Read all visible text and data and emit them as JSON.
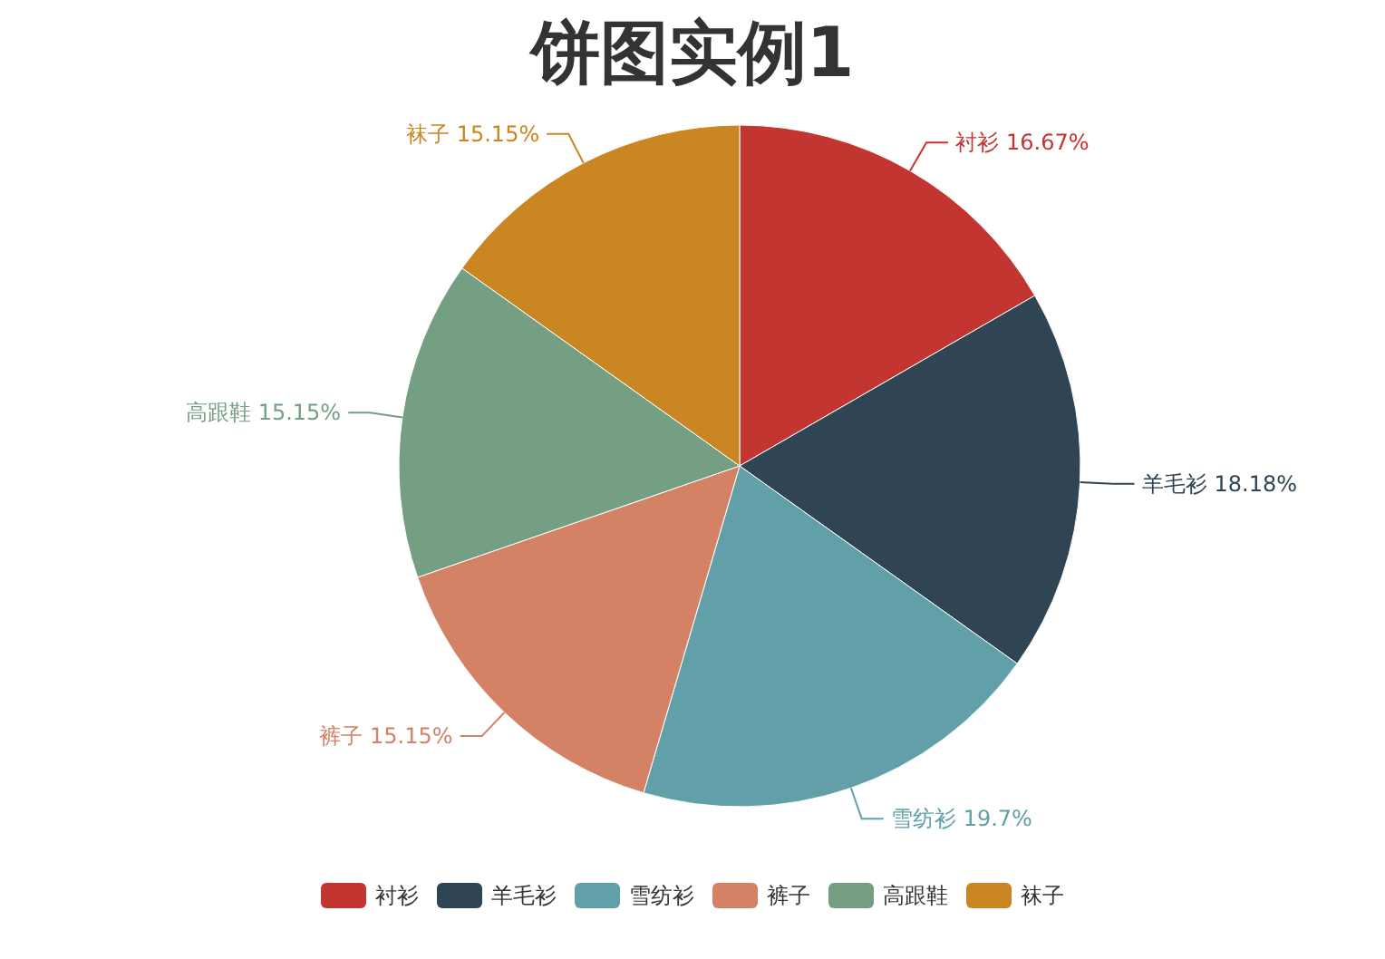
{
  "chart_data": {
    "type": "pie",
    "title": "饼图实例1",
    "categories": [
      "衬衫",
      "羊毛衫",
      "雪纺衫",
      "裤子",
      "高跟鞋",
      "袜子"
    ],
    "values": [
      16.67,
      18.18,
      19.7,
      15.15,
      15.15,
      15.15
    ],
    "colors": [
      "#c23531",
      "#2f4554",
      "#61a0a8",
      "#d48265",
      "#749f83",
      "#ca8622"
    ],
    "value_labels": [
      "16.67%",
      "18.18%",
      "19.7%",
      "15.15%",
      "15.15%",
      "15.15%"
    ],
    "legend": "bottom"
  }
}
